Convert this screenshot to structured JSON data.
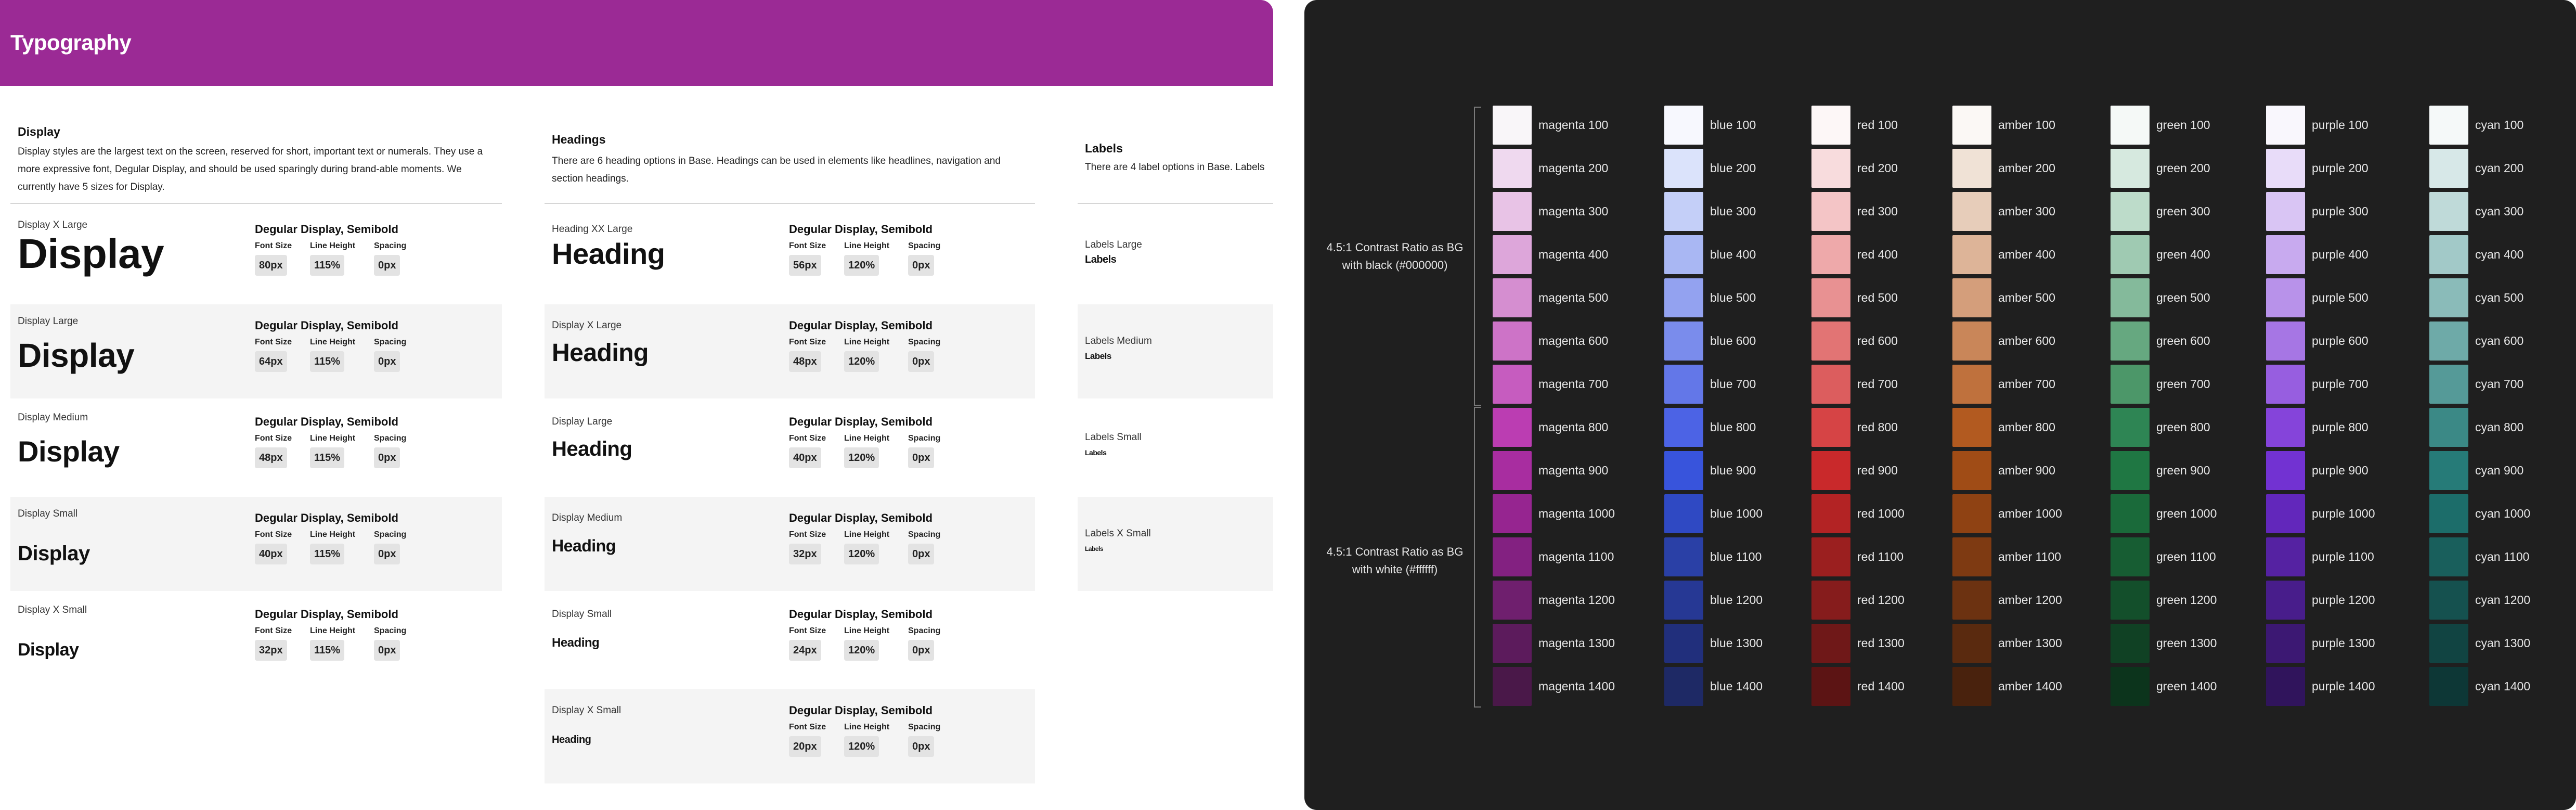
{
  "typography": {
    "title": "Typography",
    "display": {
      "title": "Display",
      "description": "Display styles are the largest text on the screen, reserved for short, important text or numerals. They use a more expressive font, Degular Display, and should be used sparingly during brand-able moments. We currently have 5 sizes for Display.",
      "rows": [
        {
          "label": "Display X Large",
          "sample": "Display",
          "font": "Degular Display, Semibold",
          "size": "80px",
          "line_height": "115%",
          "spacing": "0px"
        },
        {
          "label": "Display Large",
          "sample": "Display",
          "font": "Degular Display, Semibold",
          "size": "64px",
          "line_height": "115%",
          "spacing": "0px"
        },
        {
          "label": "Display Medium",
          "sample": "Display",
          "font": "Degular Display, Semibold",
          "size": "48px",
          "line_height": "115%",
          "spacing": "0px"
        },
        {
          "label": "Display Small",
          "sample": "Display",
          "font": "Degular Display, Semibold",
          "size": "40px",
          "line_height": "115%",
          "spacing": "0px"
        },
        {
          "label": "Display X Small",
          "sample": "Display",
          "font": "Degular Display, Semibold",
          "size": "32px",
          "line_height": "115%",
          "spacing": "0px"
        }
      ]
    },
    "headings": {
      "title": "Headings",
      "description": "There are 6 heading options in Base. Headings can be used in elements like headlines, navigation and section headings.",
      "rows": [
        {
          "label": "Heading XX Large",
          "sample": "Heading",
          "font": "Degular Display, Semibold",
          "size": "56px",
          "line_height": "120%",
          "spacing": "0px"
        },
        {
          "label": "Display X Large",
          "sample": "Heading",
          "font": "Degular Display, Semibold",
          "size": "48px",
          "line_height": "120%",
          "spacing": "0px"
        },
        {
          "label": "Display Large",
          "sample": "Heading",
          "font": "Degular Display, Semibold",
          "size": "40px",
          "line_height": "120%",
          "spacing": "0px"
        },
        {
          "label": "Display Medium",
          "sample": "Heading",
          "font": "Degular Display, Semibold",
          "size": "32px",
          "line_height": "120%",
          "spacing": "0px"
        },
        {
          "label": "Display Small",
          "sample": "Heading",
          "font": "Degular Display, Semibold",
          "size": "24px",
          "line_height": "120%",
          "spacing": "0px"
        },
        {
          "label": "Display X Small",
          "sample": "Heading",
          "font": "Degular Display, Semibold",
          "size": "20px",
          "line_height": "120%",
          "spacing": "0px"
        }
      ]
    },
    "labels": {
      "title": "Labels",
      "description": "There are 4 label options in Base. Labels",
      "rows": [
        {
          "label": "Labels Large",
          "sample": "Labels"
        },
        {
          "label": "Labels Medium",
          "sample": "Labels"
        },
        {
          "label": "Labels Small",
          "sample": "Labels"
        },
        {
          "label": "Labels X Small",
          "sample": "Labels"
        }
      ]
    },
    "spec_headers": {
      "size": "Font Size",
      "line_height": "Line Height",
      "spacing": "Spacing"
    }
  },
  "palette": {
    "contrast_black": "4.5:1 Contrast Ratio as BG with black (#000000)",
    "contrast_white": "4.5:1 Contrast Ratio as BG with white (#ffffff)",
    "families": [
      {
        "name": "magenta",
        "colors": [
          "#f9f6f9",
          "#efd9ef",
          "#e8c3e6",
          "#dda6da",
          "#d58ed0",
          "#cd73c7",
          "#c65cbf",
          "#bb3db2",
          "#a82da0",
          "#962590",
          "#832181",
          "#6f1f6e",
          "#5c1b5c",
          "#4a1849"
        ]
      },
      {
        "name": "blue",
        "colors": [
          "#f7f8fe",
          "#dbe3fb",
          "#c4cff8",
          "#a9b7f3",
          "#93a2f0",
          "#7a8cec",
          "#6377e8",
          "#4c63e5",
          "#3854dc",
          "#2f49c3",
          "#2a40a6",
          "#263894",
          "#212f7c",
          "#1e2965"
        ]
      },
      {
        "name": "red",
        "colors": [
          "#fdf7f7",
          "#f8dcdd",
          "#f4c5c6",
          "#eea9aa",
          "#e89192",
          "#e27474",
          "#dc5d5e",
          "#d64445",
          "#c9292b",
          "#b32324",
          "#9b1f1f",
          "#861c1c",
          "#6f1818",
          "#5c1414"
        ]
      },
      {
        "name": "amber",
        "colors": [
          "#fbf8f5",
          "#f0e2d6",
          "#e7cdba",
          "#ddb498",
          "#d49e7b",
          "#c98659",
          "#bf713d",
          "#b25a20",
          "#a04c16",
          "#8f4213",
          "#7e3a12",
          "#6c3211",
          "#5a2a0f",
          "#49220d"
        ]
      },
      {
        "name": "green",
        "colors": [
          "#f5f9f7",
          "#d6e9df",
          "#bddcca",
          "#9fcab2",
          "#84ba9b",
          "#66a880",
          "#4c9769",
          "#2e8554",
          "#1f7743",
          "#1a6a3a",
          "#175d33",
          "#134f2b",
          "#104124",
          "#0c341c"
        ]
      },
      {
        "name": "purple",
        "colors": [
          "#f9f7fd",
          "#e8dcf9",
          "#d9c5f4",
          "#c8aaef",
          "#b892ea",
          "#a676e4",
          "#975ee0",
          "#8544da",
          "#7232d2",
          "#6227bb",
          "#5522a2",
          "#481d8b",
          "#3c1873",
          "#30145c"
        ]
      },
      {
        "name": "cyan",
        "colors": [
          "#f5f9f9",
          "#d7e8e8",
          "#bfdad9",
          "#a2c9c8",
          "#8abbb9",
          "#6eaaa8",
          "#559a98",
          "#3b8986",
          "#267b78",
          "#1c6d6a",
          "#195f5c",
          "#15514f",
          "#114442",
          "#0d3736"
        ]
      }
    ],
    "steps": [
      "100",
      "200",
      "300",
      "400",
      "500",
      "600",
      "700",
      "800",
      "900",
      "1000",
      "1100",
      "1200",
      "1300",
      "1400"
    ]
  }
}
